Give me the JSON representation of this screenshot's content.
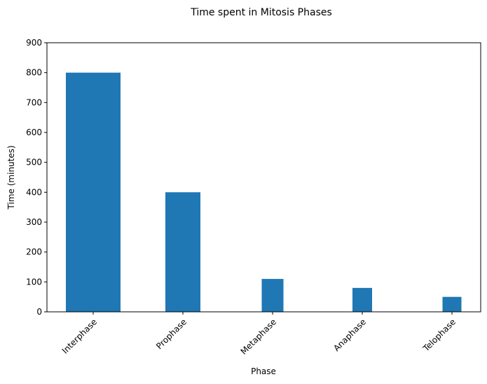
{
  "chart_data": {
    "type": "bar",
    "title": "Time spent in Mitosis Phases",
    "xlabel": "Phase",
    "ylabel": "Time (minutes)",
    "categories": [
      "Interphase",
      "Prophase",
      "Metaphase",
      "Anaphase",
      "Telophase"
    ],
    "values": [
      800,
      400,
      110,
      80,
      50
    ],
    "ylim": [
      0,
      900
    ],
    "yticks": [
      0,
      100,
      200,
      300,
      400,
      500,
      600,
      700,
      800,
      900
    ],
    "bar_color": "#1f77b4",
    "grid": false,
    "legend": "none"
  }
}
